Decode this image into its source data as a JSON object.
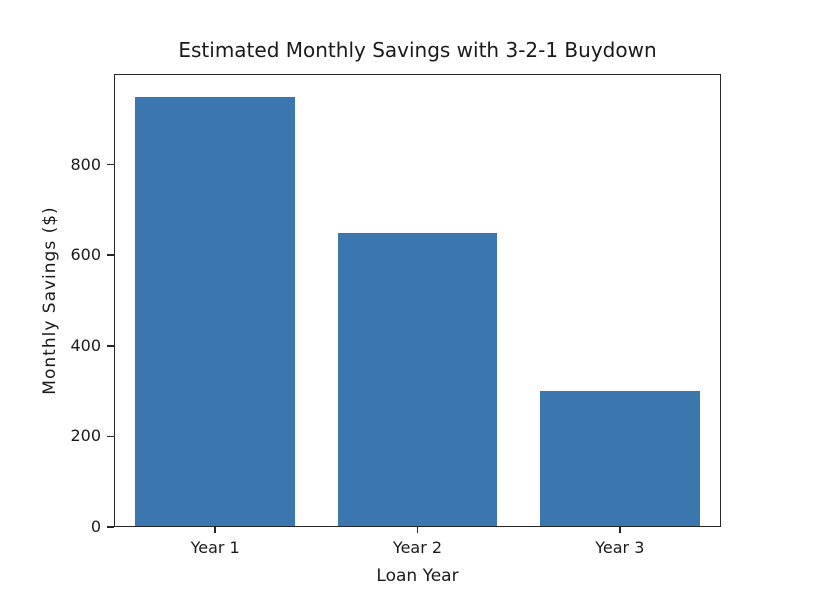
{
  "chart_data": {
    "type": "bar",
    "title": "Estimated Monthly Savings with 3-2-1 Buydown",
    "xlabel": "Loan Year",
    "ylabel": "Monthly Savings ($)",
    "categories": [
      "Year 1",
      "Year 2",
      "Year 3"
    ],
    "values": [
      950,
      650,
      300
    ],
    "yticks": [
      0,
      200,
      400,
      600,
      800
    ],
    "ylim": [
      0,
      1000
    ],
    "bar_width_fraction": 0.79,
    "grid": false,
    "legend_position": "none",
    "colors": {
      "bar": "#3c76af",
      "spine": "#262626",
      "text": "#1a1a1a",
      "background": "#ffffff"
    }
  }
}
